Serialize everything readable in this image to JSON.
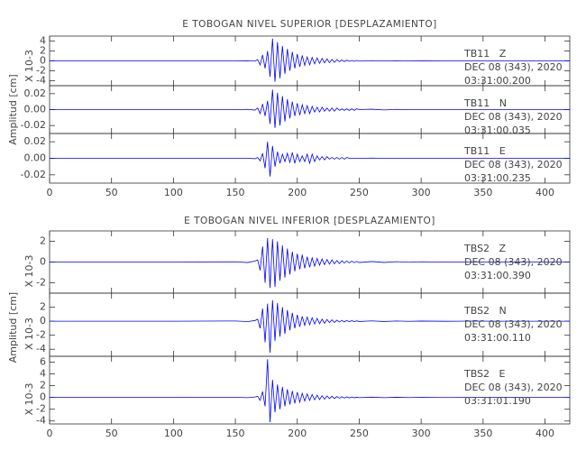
{
  "chart_data": [
    {
      "type": "line",
      "title": "E TOBOGAN NIVEL SUPERIOR [DESPLAZAMIENTO]",
      "ylabel": "Amplitud [cm]",
      "xlim": [
        0,
        420
      ],
      "xticks": [
        0,
        50,
        100,
        150,
        200,
        250,
        300,
        350,
        400
      ],
      "x": [
        0,
        50,
        100,
        150,
        160,
        166,
        168,
        170,
        172,
        174,
        176,
        178,
        180,
        182,
        184,
        186,
        188,
        190,
        192,
        194,
        196,
        198,
        200,
        202,
        204,
        206,
        208,
        210,
        212,
        214,
        216,
        218,
        220,
        222,
        224,
        226,
        228,
        230,
        232,
        234,
        236,
        238,
        240,
        242,
        244,
        246,
        248,
        250,
        260,
        270,
        280,
        290,
        300,
        320,
        340,
        360,
        380,
        400,
        420
      ],
      "subplots": [
        {
          "scale_label": "X 10-3",
          "ylim": [
            -5,
            5
          ],
          "yticks": [
            -4,
            -2,
            0,
            2,
            4
          ],
          "color": "#0000ff",
          "annotation": [
            "TB11   Z",
            "DEC 08 (343), 2020",
            "03:31:00.200"
          ],
          "values": [
            0,
            0,
            0,
            0,
            0.02,
            -0.04,
            0.27,
            -0.81,
            1.2,
            -1.5,
            2,
            -3.2,
            4.5,
            -4.2,
            3.8,
            -3.5,
            3,
            -2.6,
            2.4,
            -2,
            1.8,
            -1.5,
            1.4,
            -1.2,
            1.1,
            -0.9,
            0.8,
            -0.8,
            0.7,
            -0.6,
            0.6,
            -0.5,
            0.5,
            -0.4,
            0.4,
            -0.36,
            0.3,
            -0.3,
            0.27,
            -0.18,
            0.18,
            -0.14,
            0.14,
            -0.09,
            0.09,
            -0.09,
            0.09,
            -0.05,
            0.04,
            -0.03,
            0.02,
            -0.02,
            0.01,
            0,
            0,
            0,
            0,
            0,
            0
          ]
        },
        {
          "ylim": [
            -0.03,
            0.03
          ],
          "yticks": [
            -0.02,
            {
              "value": 0,
              "label": "0.00"
            },
            0.02
          ],
          "color": "#0000ff",
          "annotation": [
            "TB11   N",
            "DEC 08 (343), 2020",
            "03:31:00.035"
          ],
          "values": [
            0,
            0,
            0,
            0,
            0.0003,
            -0.0006,
            0.002,
            -0.005,
            0.007,
            -0.008,
            0.011,
            -0.018,
            0.025,
            -0.023,
            0.021,
            -0.02,
            0.017,
            -0.015,
            0.013,
            -0.011,
            0.01,
            -0.008,
            0.008,
            -0.007,
            0.006,
            -0.005,
            0.005,
            -0.005,
            0.004,
            -0.003,
            0.003,
            -0.003,
            0.003,
            -0.002,
            0.002,
            -0.002,
            0.002,
            -0.002,
            0.002,
            -0.001,
            0.001,
            -0.001,
            0.001,
            -0.001,
            0.001,
            -0.001,
            0.001,
            0,
            0.0005,
            -0.0004,
            0.0003,
            0,
            0,
            0,
            0,
            0,
            0,
            0,
            0
          ]
        },
        {
          "ylim": [
            -0.03,
            0.03
          ],
          "yticks": [
            -0.02,
            {
              "value": 0,
              "label": "0.00"
            },
            0.02
          ],
          "color": "#0000ff",
          "annotation": [
            "TB11   E",
            "DEC 08 (343), 2020",
            "03:31:00.235"
          ],
          "values": [
            0,
            0,
            0,
            0,
            0,
            -0.0005,
            0.001,
            -0.003,
            0.006,
            -0.012,
            0.02,
            -0.022,
            0.015,
            -0.01,
            0.008,
            -0.006,
            0.005,
            -0.004,
            0.006,
            -0.005,
            0.007,
            -0.006,
            0.005,
            -0.004,
            0.003,
            -0.004,
            0.005,
            -0.006,
            0.005,
            -0.004,
            0.003,
            -0.002,
            0.002,
            -0.002,
            0.002,
            -0.001,
            0.001,
            -0.001,
            0.001,
            -0.001,
            0.001,
            -0.001,
            0.001,
            0,
            0,
            0,
            0,
            0,
            0.0003,
            0,
            0,
            0,
            0,
            0,
            0,
            0,
            0,
            0,
            0
          ]
        }
      ]
    },
    {
      "type": "line",
      "title": "E TOBOGAN NIVEL INFERIOR [DESPLAZAMIENTO]",
      "ylabel": "Amplitud [cm]",
      "xlim": [
        0,
        420
      ],
      "xticks": [
        0,
        50,
        100,
        150,
        200,
        250,
        300,
        350,
        400
      ],
      "x": [
        0,
        50,
        100,
        150,
        160,
        166,
        168,
        170,
        172,
        174,
        176,
        178,
        180,
        182,
        184,
        186,
        188,
        190,
        192,
        194,
        196,
        198,
        200,
        202,
        204,
        206,
        208,
        210,
        212,
        214,
        216,
        218,
        220,
        222,
        224,
        226,
        228,
        230,
        232,
        234,
        236,
        238,
        240,
        242,
        244,
        246,
        248,
        250,
        260,
        270,
        280,
        290,
        300,
        320,
        340,
        360,
        380,
        400,
        420
      ],
      "subplots": [
        {
          "scale_label": "X 10-3",
          "ylim": [
            -3,
            3
          ],
          "yticks": [
            -2,
            0,
            2
          ],
          "color": "#0000ff",
          "annotation": [
            "TBS2   Z",
            "DEC 08 (343), 2020",
            "03:31:00.390"
          ],
          "values": [
            0,
            0,
            0,
            0.02,
            -0.05,
            0.1,
            0.2,
            -0.8,
            1.5,
            -2,
            2.3,
            -2.5,
            2.2,
            -2.4,
            2,
            -1.8,
            1.6,
            -1.5,
            1.3,
            -1.2,
            1,
            -0.9,
            0.8,
            -0.7,
            0.7,
            -0.6,
            0.5,
            -0.5,
            0.4,
            -0.4,
            0.35,
            -0.3,
            0.3,
            -0.25,
            0.25,
            -0.2,
            0.2,
            -0.18,
            0.15,
            -0.15,
            0.12,
            -0.1,
            0.1,
            -0.08,
            0.08,
            -0.06,
            0.06,
            -0.05,
            0.05,
            -0.04,
            0.03,
            -0.02,
            0.02,
            -0.01,
            0.01,
            0,
            0,
            0,
            0
          ]
        },
        {
          "scale_label": "X 10-3",
          "ylim": [
            -5,
            4
          ],
          "yticks": [
            -4,
            -2,
            0,
            2
          ],
          "color": "#0000ff",
          "annotation": [
            "TBS2   N",
            "DEC 08 (343), 2020",
            "03:31:00.110"
          ],
          "values": [
            0,
            0,
            0,
            0.03,
            -0.05,
            0.1,
            0.3,
            -1,
            1.8,
            -3,
            2.5,
            -4.5,
            3,
            -2.8,
            2.6,
            -2.2,
            2,
            -1.8,
            1.6,
            -1.3,
            1.2,
            -1,
            0.9,
            -0.8,
            0.7,
            -0.6,
            0.6,
            -0.5,
            0.5,
            -0.4,
            0.4,
            -0.35,
            0.3,
            -0.3,
            0.25,
            -0.2,
            0.2,
            -0.18,
            0.15,
            -0.12,
            0.12,
            -0.1,
            0.1,
            -0.08,
            0.08,
            -0.06,
            0.05,
            -0.04,
            0.05,
            -0.04,
            0.03,
            -0.02,
            0.02,
            -0.01,
            0.01,
            0,
            0,
            0,
            0
          ]
        },
        {
          "scale_label": "X 10-3",
          "ylim": [
            -4.5,
            7
          ],
          "yticks": [
            -4,
            -2,
            0,
            2,
            4,
            6
          ],
          "color": "#0000ff",
          "annotation": [
            "TBS2   E",
            "DEC 08 (343), 2020",
            "03:31:01.190"
          ],
          "values": [
            0,
            0,
            0,
            0.02,
            -0.04,
            0.08,
            0.2,
            -0.5,
            1,
            -1.5,
            6.5,
            -4.2,
            3,
            -2.5,
            2.2,
            -2,
            1.8,
            -1.5,
            1.4,
            -1.2,
            1.1,
            -1,
            0.9,
            -0.8,
            0.7,
            -0.6,
            0.6,
            -0.5,
            0.5,
            -0.4,
            0.4,
            -0.35,
            0.3,
            -0.3,
            0.25,
            -0.2,
            0.2,
            -0.18,
            0.15,
            -0.12,
            0.12,
            -0.1,
            0.1,
            -0.08,
            0.08,
            -0.06,
            0.05,
            -0.04,
            0.05,
            -0.04,
            0.03,
            -0.02,
            0.02,
            -0.01,
            0.01,
            0,
            0,
            0,
            0
          ]
        }
      ]
    }
  ]
}
